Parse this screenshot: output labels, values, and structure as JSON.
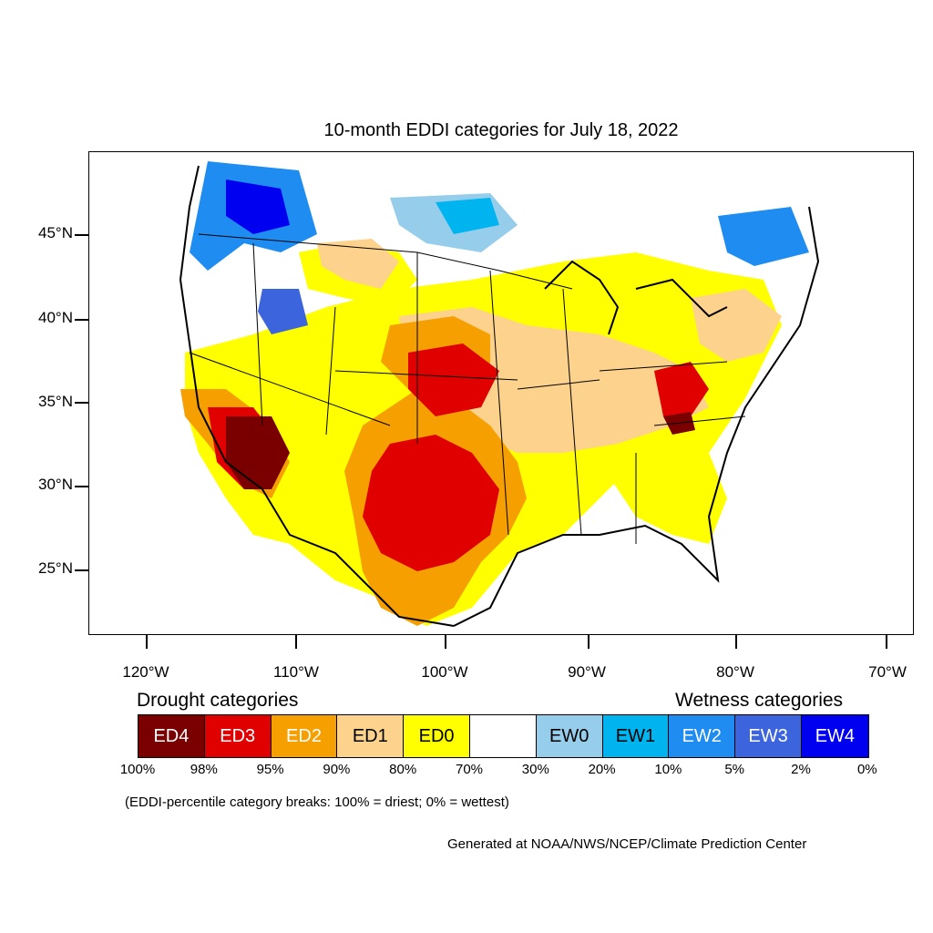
{
  "title": "10-month EDDI categories for July 18, 2022",
  "axes": {
    "y_labels": [
      "45°N",
      "40°N",
      "35°N",
      "30°N",
      "25°N"
    ],
    "x_labels": [
      "120°W",
      "110°W",
      "100°W",
      "90°W",
      "80°W",
      "70°W"
    ]
  },
  "legend": {
    "drought_title": "Drought categories",
    "wetness_title": "Wetness categories",
    "categories": [
      {
        "label": "ED4",
        "color": "#7a0000",
        "text_color": "#ffffff"
      },
      {
        "label": "ED3",
        "color": "#e00000",
        "text_color": "#ffffff"
      },
      {
        "label": "ED2",
        "color": "#f5a000",
        "text_color": "#ffffff"
      },
      {
        "label": "ED1",
        "color": "#fcd28c",
        "text_color": "#000000"
      },
      {
        "label": "ED0",
        "color": "#ffff00",
        "text_color": "#000000"
      },
      {
        "label": "",
        "color": "#ffffff",
        "text_color": "#000000"
      },
      {
        "label": "EW0",
        "color": "#96cdeb",
        "text_color": "#000000"
      },
      {
        "label": "EW1",
        "color": "#00b4f0",
        "text_color": "#000000"
      },
      {
        "label": "EW2",
        "color": "#1e8cf0",
        "text_color": "#ffffff"
      },
      {
        "label": "EW3",
        "color": "#3c64dc",
        "text_color": "#ffffff"
      },
      {
        "label": "EW4",
        "color": "#0000f0",
        "text_color": "#ffffff"
      }
    ],
    "breaks": [
      "100%",
      "98%",
      "95%",
      "90%",
      "80%",
      "70%",
      "30%",
      "20%",
      "10%",
      "5%",
      "2%",
      "0%"
    ]
  },
  "note": "(EDDI-percentile category breaks: 100% = driest; 0% = wettest)",
  "credit": "Generated at NOAA/NWS/NCEP/Climate Prediction Center"
}
